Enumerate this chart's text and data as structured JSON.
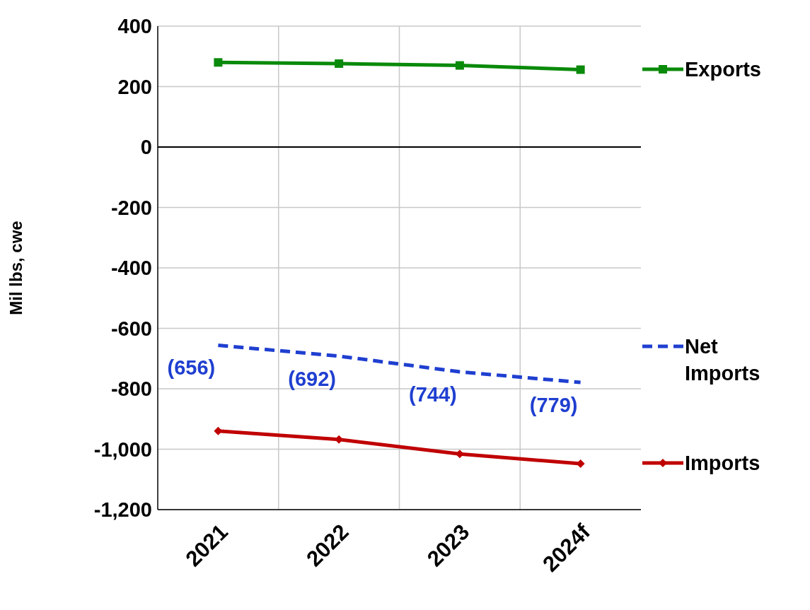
{
  "chart_data": {
    "type": "line",
    "ylabel": "Mil lbs, cwe",
    "categories": [
      "2021",
      "2022",
      "2023",
      "2024f"
    ],
    "ylim": [
      -1200,
      400
    ],
    "yticks": [
      {
        "value": -1200,
        "label": "-1,200"
      },
      {
        "value": -1000,
        "label": "-1,000"
      },
      -800,
      -600,
      -400,
      -200,
      0,
      200,
      400
    ],
    "grid": true,
    "legend": "right",
    "ref_lines": [
      {
        "axis": "y",
        "value": 0,
        "color": "#000000"
      }
    ],
    "series": [
      {
        "name": "Exports",
        "color": "#0a8a0a",
        "marker": "square",
        "line_style": "solid",
        "values": [
          280,
          276,
          270,
          256
        ]
      },
      {
        "name": "Net Imports",
        "color": "#1f3fd0",
        "marker": "none",
        "line_style": "dashed",
        "values": [
          -656,
          -692,
          -744,
          -779
        ],
        "value_labels": [
          "(656)",
          "(692)",
          "(744)",
          "(779)"
        ]
      },
      {
        "name": "Imports",
        "color": "#c00000",
        "marker": "diamond",
        "line_style": "solid",
        "values": [
          -940,
          -968,
          -1016,
          -1048
        ]
      }
    ]
  }
}
